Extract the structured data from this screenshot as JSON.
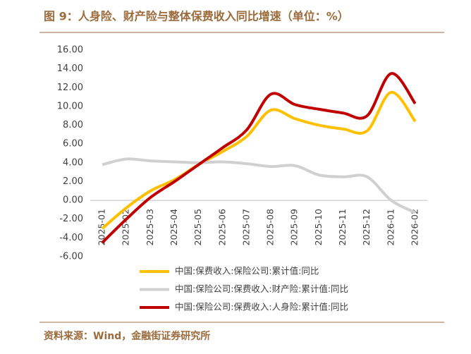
{
  "chart_data": {
    "type": "line",
    "title": "图 9：人身险、财产险与整体保费收入同比增速（单位：%）",
    "source": "资料来源：Wind，金融街证券研究所",
    "categories": [
      "2025-01",
      "2025-02",
      "2025-03",
      "2025-04",
      "2025-05",
      "2025-06",
      "2025-07",
      "2025-08",
      "2025-09",
      "2025-10",
      "2025-11",
      "2025-12",
      "2026-01",
      "2026-02"
    ],
    "series": [
      {
        "name": "中国:保费收入:保险公司:累计值:同比",
        "color": "#FFC000",
        "values": [
          -3.0,
          -0.8,
          1.0,
          2.2,
          3.8,
          5.2,
          6.8,
          9.6,
          8.7,
          8.0,
          7.6,
          7.4,
          11.5,
          8.4
        ]
      },
      {
        "name": "中国:保险公司:保费收入:财产险:累计值:同比",
        "color": "#D0D0D0",
        "values": [
          3.8,
          4.4,
          4.2,
          4.1,
          4.0,
          4.1,
          3.9,
          3.6,
          3.7,
          2.7,
          2.5,
          2.5,
          0.0,
          -1.3
        ]
      },
      {
        "name": "中国:保险公司:保费收入:人身险:累计值:同比",
        "color": "#C00000",
        "values": [
          -4.5,
          -2.0,
          0.3,
          2.0,
          3.8,
          5.6,
          7.5,
          11.3,
          10.2,
          9.7,
          9.3,
          9.0,
          13.5,
          10.3
        ]
      }
    ],
    "ylim": [
      -6,
      16
    ],
    "yticks": [
      {
        "value": -6,
        "label": "-6.00"
      },
      {
        "value": -4,
        "label": "-4.00"
      },
      {
        "value": -2,
        "label": "-2.00"
      },
      {
        "value": 0,
        "label": "0.00"
      },
      {
        "value": 2,
        "label": "2.00"
      },
      {
        "value": 4,
        "label": "4.00"
      },
      {
        "value": 6,
        "label": "6.00"
      },
      {
        "value": 8,
        "label": "8.00"
      },
      {
        "value": 10,
        "label": "10.00"
      },
      {
        "value": 12,
        "label": "12.00"
      },
      {
        "value": 14,
        "label": "14.00"
      },
      {
        "value": 16,
        "label": "16.00"
      }
    ]
  }
}
